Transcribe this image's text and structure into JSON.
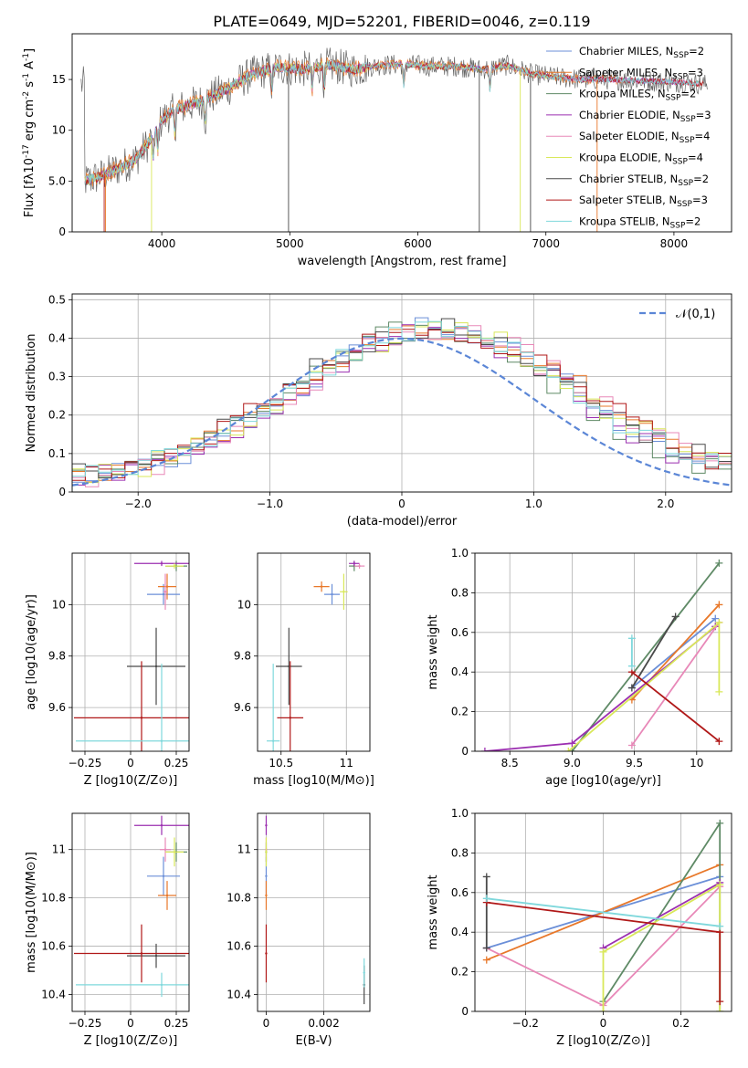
{
  "figure": {
    "title": "PLATE=0649, MJD=52201, FIBERID=0046, z=0.119"
  },
  "colors": [
    "#6b8fd8",
    "#e8782a",
    "#5f8a66",
    "#9b2fb0",
    "#e888b8",
    "#d9e85a",
    "#4a4a4a",
    "#b01818",
    "#7fd8dc"
  ],
  "legend_series": [
    {
      "name": "Chabrier MILES, N_{SSP}=2"
    },
    {
      "name": "Salpeter MILES, N_{SSP}=3"
    },
    {
      "name": "Kroupa MILES, N_{SSP}=2"
    },
    {
      "name": "Chabrier ELODIE, N_{SSP}=3"
    },
    {
      "name": "Salpeter ELODIE, N_{SSP}=4"
    },
    {
      "name": "Kroupa ELODIE, N_{SSP}=4"
    },
    {
      "name": "Chabrier STELIB, N_{SSP}=2"
    },
    {
      "name": "Salpeter STELIB, N_{SSP}=3"
    },
    {
      "name": "Kroupa STELIB, N_{SSP}=2"
    }
  ],
  "chart_data": [
    {
      "id": "spectrum",
      "type": "line",
      "xlabel": "wavelength [Angstrom, rest frame]",
      "ylabel": "Flux [fλ10^{-17} erg cm^{-2} s^{-1} A^{-1}]",
      "xlim": [
        3300,
        8450
      ],
      "ylim": [
        0,
        19.5
      ],
      "xticks": [
        4000,
        5000,
        6000,
        7000,
        8000
      ],
      "yticks": [
        0,
        5,
        10,
        15
      ],
      "grid": false,
      "legend": "right",
      "continuum": [
        [
          3400,
          5.0
        ],
        [
          3550,
          5.6
        ],
        [
          3700,
          6.5
        ],
        [
          3800,
          7.2
        ],
        [
          3900,
          8.8
        ],
        [
          4000,
          11.0
        ],
        [
          4100,
          12.0
        ],
        [
          4300,
          12.8
        ],
        [
          4500,
          14.0
        ],
        [
          4700,
          15.5
        ],
        [
          4900,
          16.2
        ],
        [
          5100,
          16.0
        ],
        [
          5300,
          16.4
        ],
        [
          5500,
          16.0
        ],
        [
          5700,
          16.4
        ],
        [
          5900,
          16.5
        ],
        [
          6100,
          16.3
        ],
        [
          6300,
          16.3
        ],
        [
          6500,
          16.0
        ],
        [
          6700,
          16.4
        ],
        [
          6900,
          15.5
        ],
        [
          7100,
          15.2
        ],
        [
          7300,
          15.0
        ],
        [
          7500,
          15.0
        ],
        [
          7700,
          14.9
        ],
        [
          7900,
          14.8
        ],
        [
          8100,
          14.7
        ],
        [
          8250,
          14.5
        ]
      ]
    },
    {
      "id": "residuals",
      "type": "line",
      "xlabel": "(data-model)/error",
      "ylabel": "Normed distribution",
      "xlim": [
        -2.5,
        2.5
      ],
      "ylim": [
        0,
        0.515
      ],
      "xticks": [
        -2,
        -1,
        0,
        1,
        2
      ],
      "yticks": [
        0.0,
        0.1,
        0.2,
        0.3,
        0.4,
        0.5
      ],
      "grid": true,
      "reference": {
        "name": "𝒩(0,1)",
        "mean": 0,
        "sigma": 1
      }
    },
    {
      "id": "z-age",
      "type": "scatter",
      "xlabel": "Z [log10(Z/Z⊙)]",
      "ylabel": "age  [log10(age/yr)]",
      "xlim": [
        -0.32,
        0.32
      ],
      "ylim": [
        9.43,
        10.2
      ],
      "xticks": [
        -0.25,
        0.0,
        0.25
      ],
      "yticks": [
        9.6,
        9.8,
        10.0
      ],
      "grid": true,
      "points": [
        {
          "s": 0,
          "x": 0.18,
          "y": 10.04,
          "xerr": 0.09,
          "yerr": 0.04
        },
        {
          "s": 1,
          "x": 0.2,
          "y": 10.07,
          "xerr": 0.05,
          "yerr": 0.05
        },
        {
          "s": 2,
          "x": 0.25,
          "y": 10.15,
          "xerr": 0.06,
          "yerr": 0.02
        },
        {
          "s": 3,
          "x": 0.17,
          "y": 10.16,
          "xerr": 0.15,
          "yerr": 0.01
        },
        {
          "s": 4,
          "x": 0.19,
          "y": 10.05,
          "xerr": 0.01,
          "yerr": 0.07
        },
        {
          "s": 5,
          "x": 0.24,
          "y": 10.15,
          "xerr": 0.05,
          "yerr": 0.01
        },
        {
          "s": 6,
          "x": 0.14,
          "y": 9.76,
          "xerr": 0.16,
          "yerr": 0.15
        },
        {
          "s": 7,
          "x": 0.06,
          "y": 9.56,
          "xerr": 0.37,
          "yerr": 0.22
        },
        {
          "s": 8,
          "x": 0.17,
          "y": 9.47,
          "xerr": 0.47,
          "yerr": 0.3
        }
      ]
    },
    {
      "id": "mass-age",
      "type": "scatter",
      "xlabel": "mass [log10(M/M⊙)]",
      "ylabel": "",
      "xlim": [
        10.32,
        11.18
      ],
      "ylim": [
        9.43,
        10.2
      ],
      "xticks": [
        10.5,
        11.0
      ],
      "yticks": [
        9.6,
        9.8,
        10.0
      ],
      "grid": true,
      "points": [
        {
          "s": 0,
          "x": 10.89,
          "y": 10.04,
          "xerr": 0.06,
          "yerr": 0.04
        },
        {
          "s": 1,
          "x": 10.81,
          "y": 10.07,
          "xerr": 0.06,
          "yerr": 0.02
        },
        {
          "s": 2,
          "x": 11.06,
          "y": 10.15,
          "xerr": 0.04,
          "yerr": 0.02
        },
        {
          "s": 3,
          "x": 11.06,
          "y": 10.16,
          "xerr": 0.04,
          "yerr": 0.01
        },
        {
          "s": 4,
          "x": 11.1,
          "y": 10.15,
          "xerr": 0.04,
          "yerr": 0.01
        },
        {
          "s": 5,
          "x": 10.98,
          "y": 10.05,
          "xerr": 0.03,
          "yerr": 0.07
        },
        {
          "s": 6,
          "x": 10.56,
          "y": 9.76,
          "xerr": 0.1,
          "yerr": 0.15
        },
        {
          "s": 7,
          "x": 10.57,
          "y": 9.56,
          "xerr": 0.1,
          "yerr": 0.22
        },
        {
          "s": 8,
          "x": 10.44,
          "y": 9.47,
          "xerr": 0.05,
          "yerr": 0.3
        }
      ]
    },
    {
      "id": "age-weight",
      "type": "line",
      "xlabel": "age  [log10(age/yr)]",
      "ylabel": "mass weight",
      "xlim": [
        8.22,
        10.28
      ],
      "ylim": [
        0,
        1.0
      ],
      "xticks": [
        8.5,
        9.0,
        9.5,
        10.0
      ],
      "yticks": [
        0.0,
        0.2,
        0.4,
        0.6,
        0.8,
        1.0
      ],
      "grid": true,
      "series": [
        {
          "s": 0,
          "x": [
            9.48,
            10.15
          ],
          "y": [
            0.32,
            0.67
          ]
        },
        {
          "s": 1,
          "x": [
            9.48,
            10.18
          ],
          "y": [
            0.26,
            0.74
          ]
        },
        {
          "s": 2,
          "x": [
            9.0,
            10.18
          ],
          "y": [
            0.0,
            0.95
          ]
        },
        {
          "s": 3,
          "x": [
            8.3,
            9.0,
            10.15
          ],
          "y": [
            0.0,
            0.04,
            0.63
          ]
        },
        {
          "s": 4,
          "x": [
            9.48,
            10.18
          ],
          "y": [
            0.03,
            0.65
          ]
        },
        {
          "s": 5,
          "x": [
            8.97,
            10.18,
            10.18
          ],
          "y": [
            0.0,
            0.65,
            0.3
          ]
        },
        {
          "s": 6,
          "x": [
            9.48,
            9.83
          ],
          "y": [
            0.32,
            0.68
          ]
        },
        {
          "s": 7,
          "x": [
            9.48,
            10.18
          ],
          "y": [
            0.4,
            0.05
          ]
        },
        {
          "s": 8,
          "x": [
            9.48,
            9.48
          ],
          "y": [
            0.57,
            0.43
          ]
        }
      ]
    },
    {
      "id": "z-mass",
      "type": "scatter",
      "xlabel": "Z [log10(Z/Z⊙)]",
      "ylabel": "mass [log10(M/M⊙)]",
      "xlim": [
        -0.32,
        0.32
      ],
      "ylim": [
        10.33,
        11.15
      ],
      "xticks": [
        -0.25,
        0.0,
        0.25
      ],
      "yticks": [
        10.4,
        10.6,
        10.8,
        11.0
      ],
      "grid": true,
      "points": [
        {
          "s": 0,
          "x": 0.18,
          "y": 10.89,
          "xerr": 0.09,
          "yerr": 0.08
        },
        {
          "s": 1,
          "x": 0.2,
          "y": 10.81,
          "xerr": 0.05,
          "yerr": 0.06
        },
        {
          "s": 2,
          "x": 0.25,
          "y": 10.99,
          "xerr": 0.06,
          "yerr": 0.04
        },
        {
          "s": 3,
          "x": 0.17,
          "y": 11.1,
          "xerr": 0.15,
          "yerr": 0.04
        },
        {
          "s": 4,
          "x": 0.19,
          "y": 11.0,
          "xerr": 0.03,
          "yerr": 0.05
        },
        {
          "s": 5,
          "x": 0.24,
          "y": 10.99,
          "xerr": 0.05,
          "yerr": 0.06
        },
        {
          "s": 6,
          "x": 0.14,
          "y": 10.56,
          "xerr": 0.16,
          "yerr": 0.05
        },
        {
          "s": 7,
          "x": 0.06,
          "y": 10.57,
          "xerr": 0.37,
          "yerr": 0.12
        },
        {
          "s": 8,
          "x": 0.17,
          "y": 10.44,
          "xerr": 0.47,
          "yerr": 0.05
        }
      ]
    },
    {
      "id": "ebv-mass",
      "type": "scatter",
      "xlabel": "E(B-V)",
      "ylabel": "",
      "xlim": [
        -0.0003,
        0.0036
      ],
      "ylim": [
        10.33,
        11.15
      ],
      "xticks": [
        0.0,
        0.002
      ],
      "yticks": [
        10.4,
        10.6,
        10.8,
        11.0
      ],
      "grid": true,
      "points": [
        {
          "s": 0,
          "x": 0.0,
          "y": 10.89,
          "yerr": 0.08
        },
        {
          "s": 1,
          "x": 0.0,
          "y": 10.81,
          "yerr": 0.06
        },
        {
          "s": 2,
          "x": 0.0,
          "y": 10.99,
          "yerr": 0.04
        },
        {
          "s": 3,
          "x": 0.0,
          "y": 11.1,
          "yerr": 0.04
        },
        {
          "s": 4,
          "x": 0.0,
          "y": 11.0,
          "yerr": 0.05
        },
        {
          "s": 5,
          "x": 0.0,
          "y": 10.99,
          "yerr": 0.06
        },
        {
          "s": 6,
          "x": 0.0034,
          "y": 10.44,
          "yerr": 0.08
        },
        {
          "s": 7,
          "x": 0.0,
          "y": 10.57,
          "yerr": 0.12
        },
        {
          "s": 8,
          "x": 0.0034,
          "y": 10.49,
          "yerr": 0.06
        }
      ]
    },
    {
      "id": "z-weight",
      "type": "line",
      "xlabel": "Z [log10(Z/Z⊙)]",
      "ylabel": "mass weight",
      "xlim": [
        -0.33,
        0.33
      ],
      "ylim": [
        0,
        1.0
      ],
      "xticks": [
        -0.2,
        0.0,
        0.2
      ],
      "yticks": [
        0.0,
        0.2,
        0.4,
        0.6,
        0.8,
        1.0
      ],
      "grid": true,
      "series": [
        {
          "s": 0,
          "x": [
            -0.3,
            0.3
          ],
          "y": [
            0.32,
            0.68
          ]
        },
        {
          "s": 1,
          "x": [
            -0.3,
            0.3
          ],
          "y": [
            0.26,
            0.74
          ]
        },
        {
          "s": 2,
          "x": [
            0.0,
            0.3,
            0.3
          ],
          "y": [
            0.05,
            0.95,
            0.0
          ]
        },
        {
          "s": 3,
          "x": [
            0.0,
            0.3
          ],
          "y": [
            0.32,
            0.65
          ]
        },
        {
          "s": 4,
          "x": [
            -0.3,
            0.0,
            0.3
          ],
          "y": [
            0.32,
            0.03,
            0.63
          ]
        },
        {
          "s": 5,
          "x": [
            0.0,
            0.0,
            0.3,
            0.3
          ],
          "y": [
            0.0,
            0.3,
            0.64,
            0.0
          ]
        },
        {
          "s": 6,
          "x": [
            -0.3,
            -0.3
          ],
          "y": [
            0.68,
            0.32
          ]
        },
        {
          "s": 7,
          "x": [
            -0.3,
            0.3,
            0.3
          ],
          "y": [
            0.55,
            0.4,
            0.05
          ]
        },
        {
          "s": 8,
          "x": [
            -0.3,
            0.3
          ],
          "y": [
            0.57,
            0.43
          ]
        }
      ]
    }
  ]
}
